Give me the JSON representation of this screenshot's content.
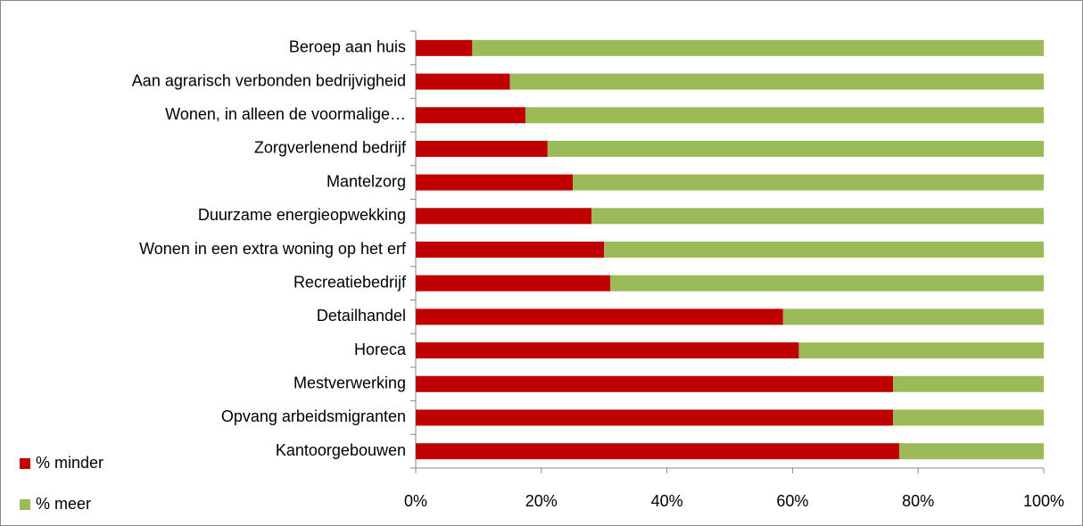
{
  "chart_data": {
    "type": "stacked_bar_horizontal",
    "categories": [
      "Beroep aan huis",
      "Aan agrarisch verbonden bedrijvigheid",
      "Wonen, in alleen de voormalige…",
      "Zorgverlenend bedrijf",
      "Mantelzorg",
      "Duurzame energieopwekking",
      "Wonen in een extra woning op het erf",
      "Recreatiebedrijf",
      "Detailhandel",
      "Horeca",
      "Mestverwerking",
      "Opvang arbeidsmigranten",
      "Kantoorgebouwen"
    ],
    "series": [
      {
        "name": "% minder",
        "color": "#c00000",
        "values": [
          9,
          15,
          17.5,
          21,
          25,
          28,
          30,
          31,
          58.5,
          61,
          76,
          76,
          77
        ]
      },
      {
        "name": "% meer",
        "color": "#9bbb59",
        "values": [
          91,
          85,
          82.5,
          79,
          75,
          72,
          70,
          69,
          41.5,
          39,
          24,
          24,
          23
        ]
      }
    ],
    "xlim": [
      0,
      100
    ],
    "xticks": [
      {
        "value": 0,
        "label": "0%"
      },
      {
        "value": 20,
        "label": "20%"
      },
      {
        "value": 40,
        "label": "40%"
      },
      {
        "value": 60,
        "label": "60%"
      },
      {
        "value": 80,
        "label": "80%"
      },
      {
        "value": 100,
        "label": "100%"
      }
    ],
    "legend": "bottom-left"
  }
}
